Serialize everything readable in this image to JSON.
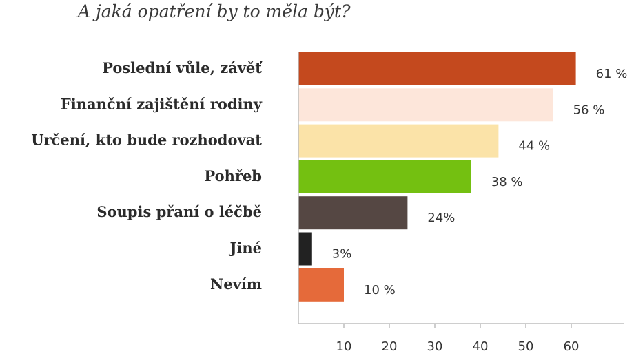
{
  "chart_data": {
    "type": "bar",
    "orientation": "horizontal",
    "title": "A jaká opatření by to měla být?",
    "categories": [
      "Poslední vůle, závěť",
      "Finanční zajištění rodiny",
      "Určení, kto bude rozhodovat",
      "Pohřeb",
      "Soupis přaní o léčbě",
      "Jiné",
      "Nevím"
    ],
    "values": [
      61,
      56,
      44,
      38,
      24,
      3,
      10
    ],
    "value_labels": [
      "61 %",
      "56 %",
      "44 %",
      "38 %",
      "24%",
      "3%",
      "10 %"
    ],
    "bar_colors": [
      "#c4491e",
      "#fde6da",
      "#fbe3a8",
      "#74c011",
      "#554743",
      "#222222",
      "#e56a3a"
    ],
    "x_ticks": [
      "10",
      "20",
      "30",
      "40",
      "50",
      "60"
    ],
    "x_tick_values": [
      10,
      20,
      30,
      40,
      50,
      60
    ],
    "xlim": [
      0,
      70
    ],
    "xlabel": "",
    "ylabel": "",
    "grid": false
  }
}
